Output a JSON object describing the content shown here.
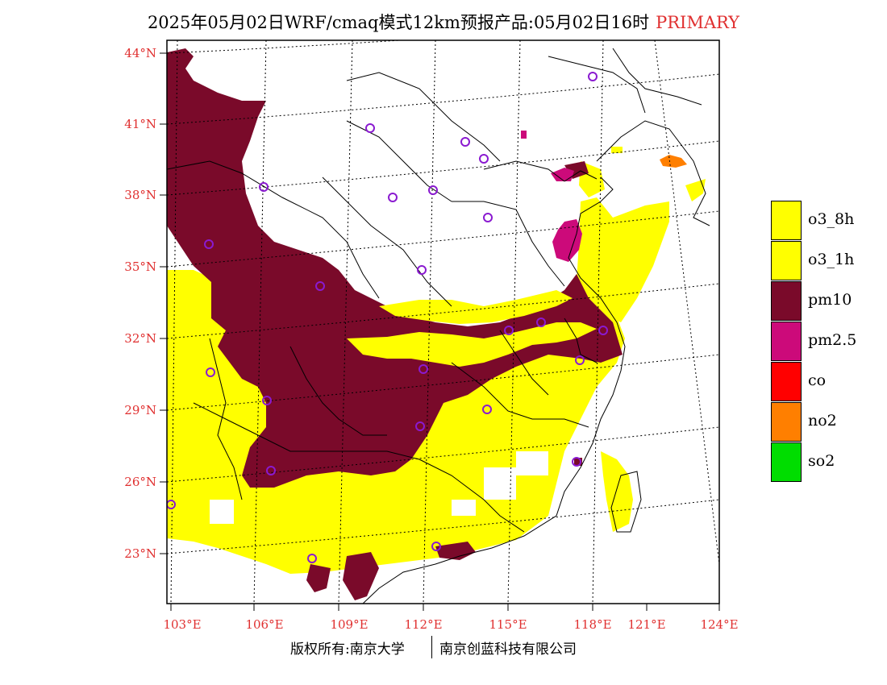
{
  "title": {
    "text": "2025年05月02日WRF/cmaq模式12km预报产品:05月02日16时",
    "tag": "PRIMARY",
    "tag_color": "#e03030"
  },
  "axis_color": "#e03030",
  "lat_labels": [
    "44°N",
    "41°N",
    "38°N",
    "35°N",
    "32°N",
    "29°N",
    "26°N",
    "23°N"
  ],
  "lon_labels": [
    "103°E",
    "106°E",
    "109°E",
    "112°E",
    "115°E",
    "118°E",
    "121°E",
    "124°E"
  ],
  "legend": [
    {
      "label": "o3_8h",
      "color": "#ffff00"
    },
    {
      "label": "o3_1h",
      "color": "#ffff00"
    },
    {
      "label": "pm10",
      "color": "#7a0a2a"
    },
    {
      "label": "pm2.5",
      "color": "#cc0a7a"
    },
    {
      "label": "co",
      "color": "#ff0000"
    },
    {
      "label": "no2",
      "color": "#ff7f00"
    },
    {
      "label": "so2",
      "color": "#00dd00"
    }
  ],
  "footer": {
    "left": "版权所有:南京大学",
    "right": "南京创蓝科技有限公司"
  },
  "stations": [
    "station",
    "station",
    "station",
    "station",
    "station"
  ]
}
